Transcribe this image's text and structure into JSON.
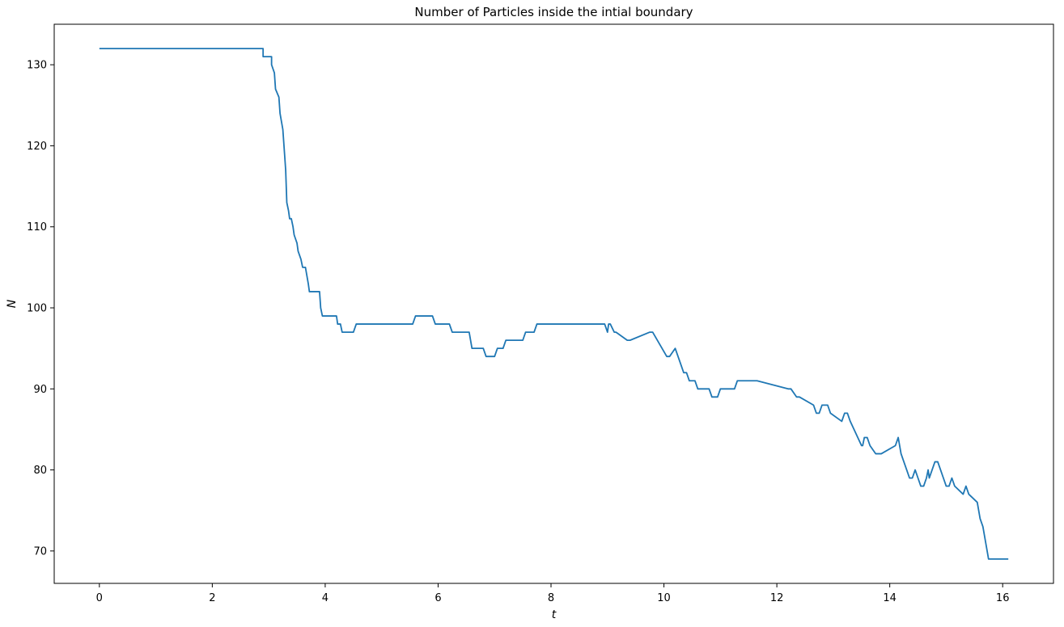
{
  "chart_data": {
    "type": "line",
    "title": "Number of Particles inside the intial boundary",
    "xlabel": "t",
    "ylabel": "N",
    "xlim": [
      -0.8,
      16.9
    ],
    "ylim": [
      66,
      135
    ],
    "xticks": [
      0,
      2,
      4,
      6,
      8,
      10,
      12,
      14,
      16
    ],
    "yticks": [
      70,
      80,
      90,
      100,
      110,
      120,
      130
    ],
    "grid": false,
    "legend": "none",
    "color": "#1f77b4",
    "series": [
      {
        "x": [
          0,
          2.9,
          2.9,
          3.05,
          3.05,
          3.1,
          3.12,
          3.18,
          3.2,
          3.25,
          3.28,
          3.3,
          3.32,
          3.35,
          3.37,
          3.4,
          3.43,
          3.45,
          3.5,
          3.52,
          3.57,
          3.6,
          3.62,
          3.65,
          3.7,
          3.72,
          3.77,
          3.9,
          3.92,
          3.95,
          4.2,
          4.22,
          4.27,
          4.3,
          4.35,
          4.4,
          4.5,
          4.55,
          5.55,
          5.6,
          5.9,
          5.95,
          6.2,
          6.25,
          6.55,
          6.6,
          6.8,
          6.85,
          7.0,
          7.05,
          7.15,
          7.2,
          7.5,
          7.55,
          7.7,
          7.75,
          7.9,
          7.95,
          8.95,
          9.0,
          9.02,
          9.05,
          9.12,
          9.15,
          9.35,
          9.4,
          9.75,
          9.8,
          10.05,
          10.1,
          10.2,
          10.25,
          10.3,
          10.35,
          10.4,
          10.45,
          10.55,
          10.6,
          10.8,
          10.85,
          10.95,
          11.0,
          11.25,
          11.3,
          11.6,
          11.65,
          12.2,
          12.25,
          12.35,
          12.4,
          12.65,
          12.7,
          12.75,
          12.8,
          12.9,
          12.95,
          13.15,
          13.2,
          13.25,
          13.3,
          13.5,
          13.52,
          13.55,
          13.6,
          13.65,
          13.75,
          13.8,
          13.85,
          14.1,
          14.15,
          14.2,
          14.25,
          14.3,
          14.35,
          14.4,
          14.45,
          14.5,
          14.55,
          14.6,
          14.65,
          14.68,
          14.7,
          14.75,
          14.8,
          14.85,
          14.9,
          14.95,
          15.0,
          15.05,
          15.1,
          15.15,
          15.3,
          15.35,
          15.4,
          15.55,
          15.6,
          15.65,
          15.7,
          15.75,
          15.8,
          15.85,
          15.9,
          15.95,
          16.0,
          16.05,
          16.1
        ]
      }
    ],
    "y": [
      132,
      132,
      131,
      131,
      130,
      129,
      127,
      126,
      124,
      122,
      119,
      117,
      113,
      112,
      111,
      111,
      110,
      109,
      108,
      107,
      106,
      105,
      105,
      105,
      103,
      102,
      102,
      102,
      100,
      99,
      99,
      98,
      98,
      97,
      97,
      97,
      97,
      98,
      98,
      99,
      99,
      98,
      98,
      97,
      97,
      95,
      95,
      94,
      94,
      95,
      95,
      96,
      96,
      97,
      97,
      98,
      98,
      98,
      98,
      97,
      98,
      98,
      97,
      97,
      96,
      96,
      97,
      97,
      94,
      94,
      95,
      94,
      93,
      92,
      92,
      91,
      91,
      90,
      90,
      89,
      89,
      90,
      90,
      91,
      91,
      91,
      90,
      90,
      89,
      89,
      88,
      87,
      87,
      88,
      88,
      87,
      86,
      87,
      87,
      86,
      83,
      83,
      84,
      84,
      83,
      82,
      82,
      82,
      83,
      84,
      82,
      81,
      80,
      79,
      79,
      80,
      79,
      78,
      78,
      79,
      80,
      79,
      80,
      81,
      81,
      80,
      79,
      78,
      78,
      79,
      78,
      77,
      78,
      77,
      76,
      74,
      73,
      71,
      69,
      69,
      69,
      69,
      69,
      69,
      69,
      69
    ]
  }
}
